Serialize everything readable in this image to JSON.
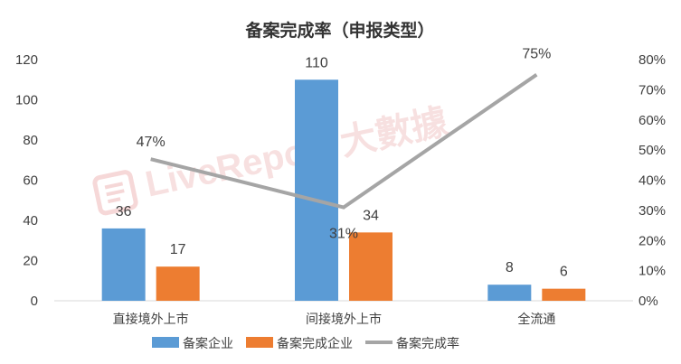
{
  "watermark": "LiveReport 大數據",
  "colors": {
    "series1": "#5b9bd5",
    "series2": "#ed7d31",
    "line": "#a5a5a5",
    "text": "#404040",
    "watermark": "#e9a7a7"
  },
  "chart_data": {
    "type": "bar",
    "title": "备案完成率（申报类型）",
    "categories": [
      "直接境外上市",
      "间接境外上市",
      "全流通"
    ],
    "series": [
      {
        "name": "备案企业",
        "type": "bar",
        "axis": "left",
        "values": [
          36,
          110,
          8
        ]
      },
      {
        "name": "备案完成企业",
        "type": "bar",
        "axis": "left",
        "values": [
          17,
          34,
          6
        ]
      },
      {
        "name": "备案完成率",
        "type": "line",
        "axis": "right",
        "values": [
          47,
          31,
          75
        ],
        "labels": [
          "47%",
          "31%",
          "75%"
        ]
      }
    ],
    "ylim": [
      0,
      120
    ],
    "yticks": [
      "0",
      "20",
      "40",
      "60",
      "80",
      "100",
      "120"
    ],
    "y2lim": [
      0,
      80
    ],
    "y2ticks": [
      "0%",
      "10%",
      "20%",
      "30%",
      "40%",
      "50%",
      "60%",
      "70%",
      "80%"
    ],
    "grid": false,
    "legend_position": "bottom"
  }
}
